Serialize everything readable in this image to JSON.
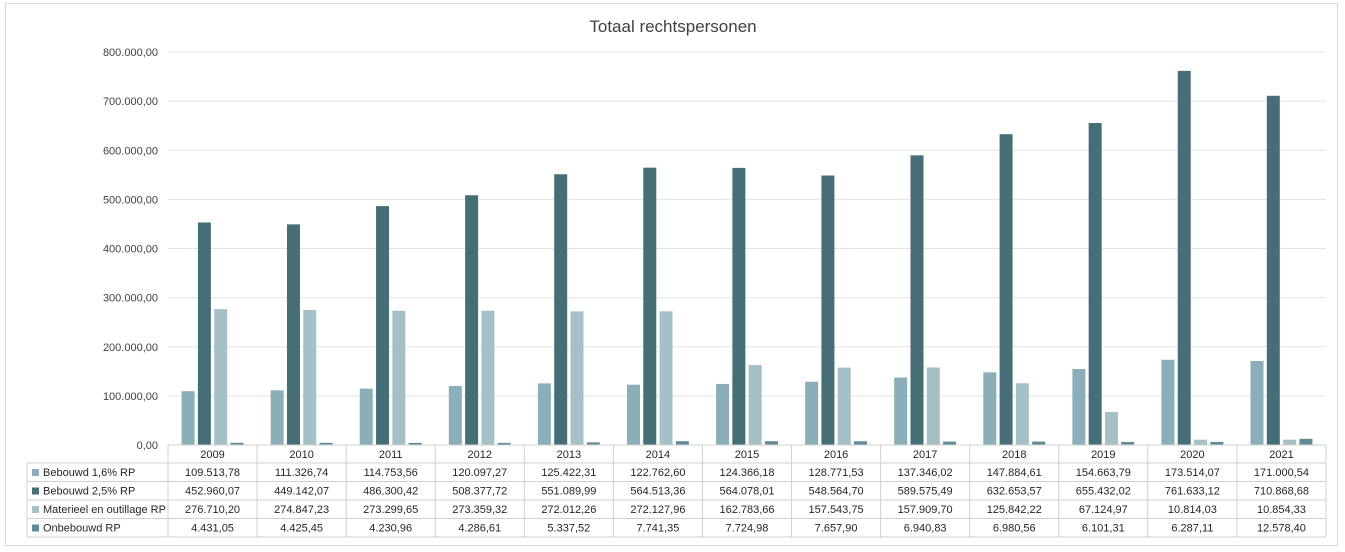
{
  "chart_data": {
    "type": "bar",
    "title": "Totaal rechtspersonen",
    "ylim": [
      0,
      800000
    ],
    "y_ticks": [
      "0,00",
      "100.000,00",
      "200.000,00",
      "300.000,00",
      "400.000,00",
      "500.000,00",
      "600.000,00",
      "700.000,00",
      "800.000,00"
    ],
    "grid": true,
    "legend": "data-table",
    "categories": [
      "2009",
      "2010",
      "2011",
      "2012",
      "2013",
      "2014",
      "2015",
      "2016",
      "2017",
      "2018",
      "2019",
      "2020",
      "2021"
    ],
    "series": [
      {
        "name": "Bebouwd 1,6% RP",
        "color": "#8aafb8",
        "values": [
          109513.78,
          111326.74,
          114753.56,
          120097.27,
          125422.31,
          122762.6,
          124366.18,
          128771.53,
          137346.02,
          147884.61,
          154663.79,
          173514.07,
          171000.54
        ],
        "labels": [
          "109.513,78",
          "111.326,74",
          "114.753,56",
          "120.097,27",
          "125.422,31",
          "122.762,60",
          "124.366,18",
          "128.771,53",
          "137.346,02",
          "147.884,61",
          "154.663,79",
          "173.514,07",
          "171.000,54"
        ]
      },
      {
        "name": "Bebouwd 2,5% RP",
        "color": "#456e77",
        "values": [
          452960.07,
          449142.07,
          486300.42,
          508377.72,
          551089.99,
          564513.36,
          564078.01,
          548564.7,
          589575.49,
          632653.57,
          655432.02,
          761633.12,
          710868.68
        ],
        "labels": [
          "452.960,07",
          "449.142,07",
          "486.300,42",
          "508.377,72",
          "551.089,99",
          "564.513,36",
          "564.078,01",
          "548.564,70",
          "589.575,49",
          "632.653,57",
          "655.432,02",
          "761.633,12",
          "710.868,68"
        ]
      },
      {
        "name": "Materieel en outillage RP",
        "color": "#a5c1c7",
        "values": [
          276710.2,
          274847.23,
          273299.65,
          273359.32,
          272012.26,
          272127.96,
          162783.66,
          157543.75,
          157909.7,
          125842.22,
          67124.97,
          10814.03,
          10854.33
        ],
        "labels": [
          "276.710,20",
          "274.847,23",
          "273.299,65",
          "273.359,32",
          "272.012,26",
          "272.127,96",
          "162.783,66",
          "157.543,75",
          "157.909,70",
          "125.842,22",
          "67.124,97",
          "10.814,03",
          "10.854,33"
        ]
      },
      {
        "name": "Onbebouwd RP",
        "color": "#5f8c95",
        "values": [
          4431.05,
          4425.45,
          4230.96,
          4286.61,
          5337.52,
          7741.35,
          7724.98,
          7657.9,
          6940.83,
          6980.56,
          6101.31,
          6287.11,
          12578.4
        ],
        "labels": [
          "4.431,05",
          "4.425,45",
          "4.230,96",
          "4.286,61",
          "5.337,52",
          "7.741,35",
          "7.724,98",
          "7.657,90",
          "6.940,83",
          "6.980,56",
          "6.101,31",
          "6.287,11",
          "12.578,40"
        ]
      }
    ]
  }
}
